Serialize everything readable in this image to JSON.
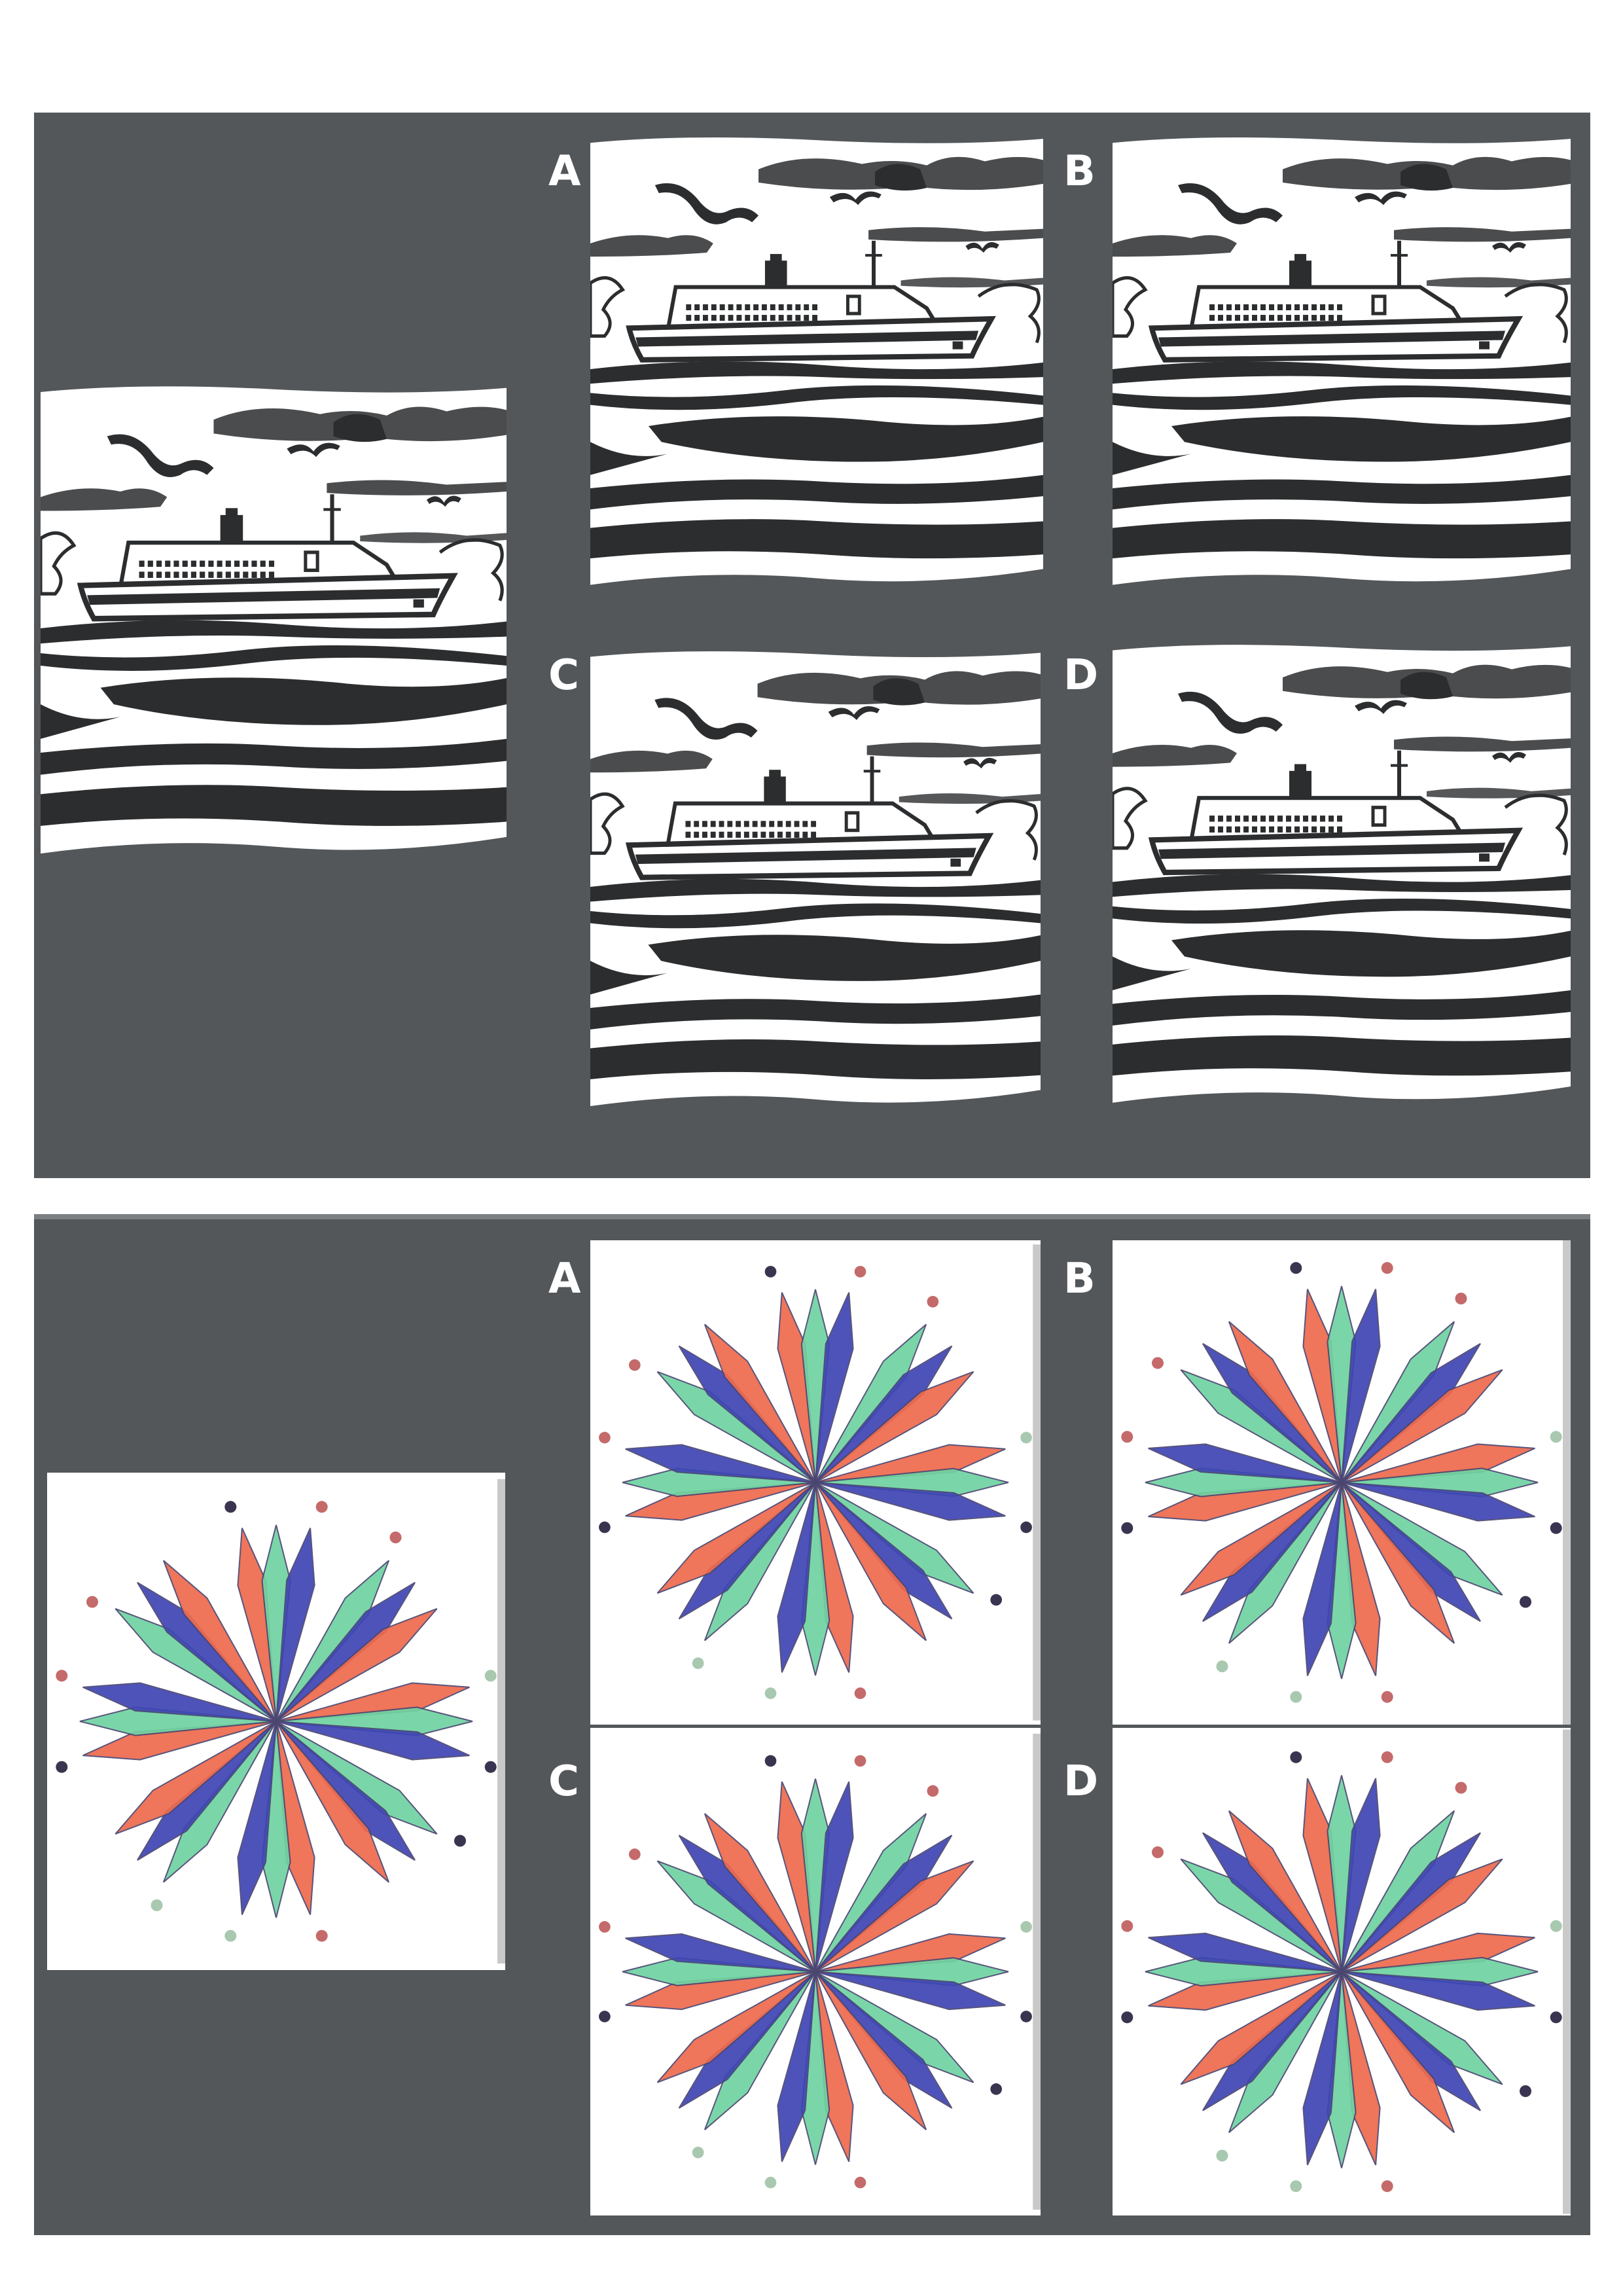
{
  "puzzles": [
    {
      "reference_figure": "ship-at-sea",
      "options": [
        {
          "label": "A",
          "figure": "ship-at-sea"
        },
        {
          "label": "B",
          "figure": "ship-at-sea"
        },
        {
          "label": "C",
          "figure": "ship-at-sea"
        },
        {
          "label": "D",
          "figure": "ship-at-sea"
        }
      ]
    },
    {
      "reference_figure": "eight-petal-star",
      "options": [
        {
          "label": "A",
          "figure": "eight-petal-star"
        },
        {
          "label": "B",
          "figure": "eight-petal-star"
        },
        {
          "label": "C",
          "figure": "eight-petal-star"
        },
        {
          "label": "D",
          "figure": "eight-petal-star"
        }
      ]
    }
  ],
  "colors": {
    "panel": "#53575a",
    "ink": "#2b2d2f",
    "paper": "#ffffff",
    "petal_red": "#ee6a4e",
    "petal_green": "#6fd3a2",
    "petal_blue": "#3e45b4",
    "dot_dark": "#3a3450",
    "dot_red": "#c46a6a",
    "dot_pale": "#a8c9b0"
  }
}
